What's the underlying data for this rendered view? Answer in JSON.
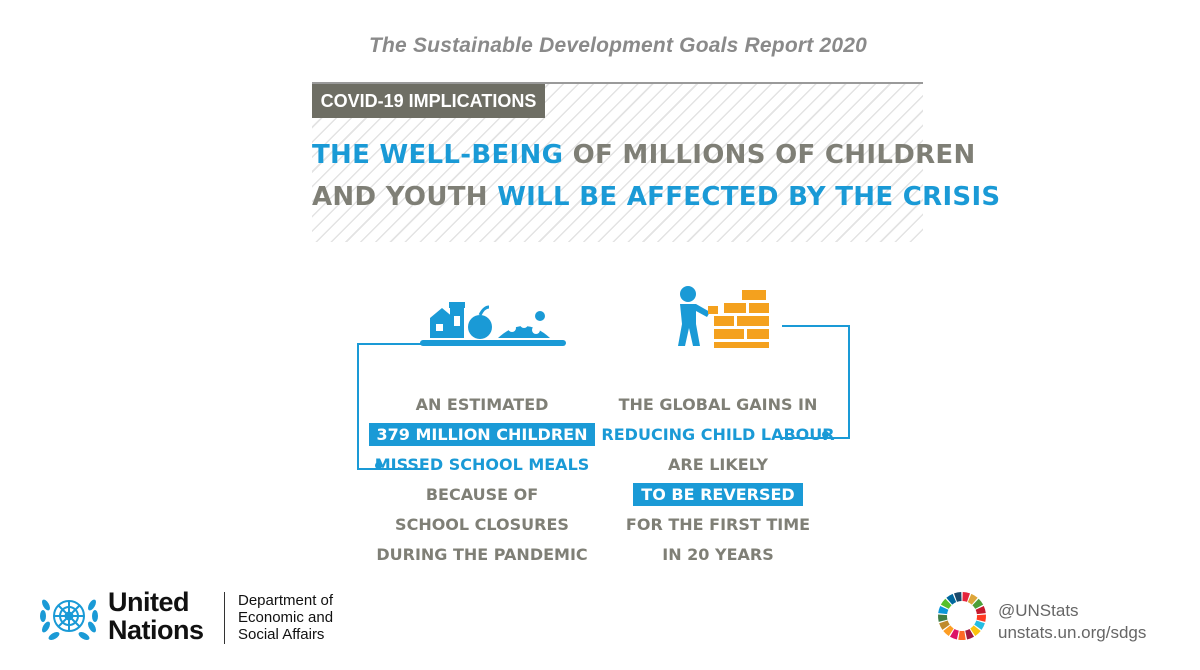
{
  "report_title": "The Sustainable Development Goals Report 2020",
  "tag": "COVID-19 IMPLICATIONS",
  "headline": {
    "line1_blue": "THE WELL-BEING",
    "line1_grey": " OF MILLIONS OF CHILDREN",
    "line2_grey": "AND YOUTH ",
    "line2_blue": "WILL BE AFFECTED BY THE CRISIS"
  },
  "left_column": {
    "lines": [
      "AN ESTIMATED",
      "379 MILLION CHILDREN",
      "MISSED SCHOOL MEALS",
      "BECAUSE OF",
      "SCHOOL CLOSURES",
      "DURING THE PANDEMIC"
    ]
  },
  "right_column": {
    "lines": [
      "THE GLOBAL GAINS IN",
      "REDUCING CHILD LABOUR",
      "ARE LIKELY",
      "TO BE REVERSED",
      "FOR THE FIRST TIME",
      "IN 20 YEARS"
    ]
  },
  "footer": {
    "un_line1": "United",
    "un_line2": "Nations",
    "desa_line1": "Department of",
    "desa_line2": "Economic and",
    "desa_line3": "Social Affairs",
    "handle": "@UNStats",
    "url": "unstats.un.org/sdgs"
  },
  "colors": {
    "accent_blue": "#1a9ad6",
    "text_grey": "#7f7f76",
    "brick_orange": "#f4a11e",
    "tag_bg": "#6e6e64"
  },
  "icons": [
    "school-meal-icon",
    "child-labour-icon",
    "un-emblem-icon",
    "sdg-wheel-icon"
  ]
}
